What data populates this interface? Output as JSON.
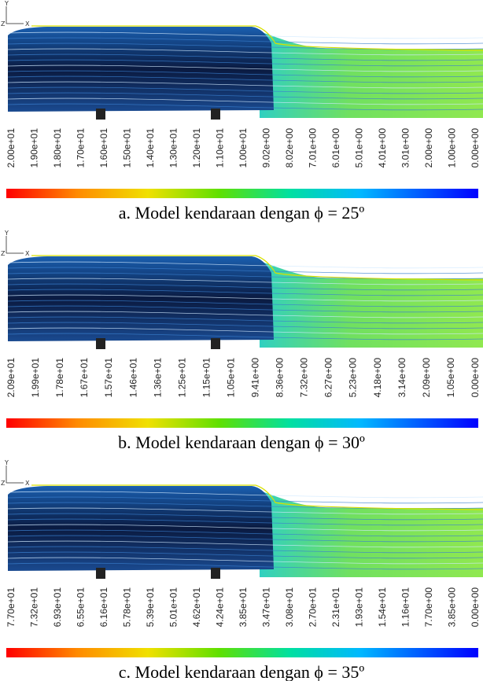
{
  "panels": [
    {
      "axes": {
        "y": "Y",
        "z": "Z",
        "x": "X"
      },
      "colorbar_labels": [
        "2.00e+01",
        "1.90e+01",
        "1.80e+01",
        "1.70e+01",
        "1.60e+01",
        "1.50e+01",
        "1.40e+01",
        "1.30e+01",
        "1.20e+01",
        "1.10e+01",
        "1.00e+01",
        "9.02e+00",
        "8.02e+00",
        "7.01e+00",
        "6.01e+00",
        "5.01e+00",
        "4.01e+00",
        "3.01e+00",
        "2.00e+00",
        "1.00e+00",
        "0.00e+00"
      ],
      "caption": "a.  Model kendaraan dengan ϕ = 25º"
    },
    {
      "axes": {
        "y": "Y",
        "z": "Z",
        "x": "X"
      },
      "colorbar_labels": [
        "2.09e+01",
        "1.99e+01",
        "1.78e+01",
        "1.67e+01",
        "1.57e+01",
        "1.46e+01",
        "1.36e+01",
        "1.25e+01",
        "1.15e+01",
        "1.05e+01",
        "9.41e+00",
        "8.36e+00",
        "7.32e+00",
        "6.27e+00",
        "5.23e+00",
        "4.18e+00",
        "3.14e+00",
        "2.09e+00",
        "1.05e+00",
        "0.00e+00"
      ],
      "caption": "b.  Model kendaraan dengan ϕ = 30º"
    },
    {
      "axes": {
        "y": "Y",
        "z": "Z",
        "x": "X"
      },
      "colorbar_labels": [
        "7.70e+01",
        "7.32e+01",
        "6.93e+01",
        "6.55e+01",
        "6.16e+01",
        "5.78e+01",
        "5.39e+01",
        "5.01e+01",
        "4.62e+01",
        "4.24e+01",
        "3.85e+01",
        "3.47e+01",
        "3.08e+01",
        "2.70e+01",
        "2.31e+01",
        "1.93e+01",
        "1.54e+01",
        "1.16e+01",
        "7.70e+00",
        "3.85e+00",
        "0.00e+00"
      ],
      "caption": "c.  Model kendaraan dengan ϕ = 35º"
    }
  ]
}
